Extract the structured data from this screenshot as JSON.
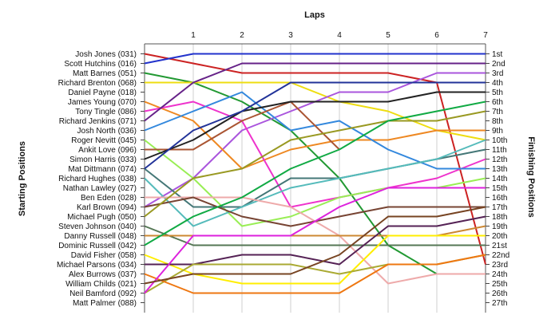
{
  "chart_data": {
    "type": "line",
    "title": "",
    "top_axis_label": "Laps",
    "left_axis_label": "Starting Positions",
    "right_axis_label": "Finishing Positions",
    "laps": [
      "1",
      "2",
      "3",
      "4",
      "5",
      "6",
      "7"
    ],
    "grid": true,
    "starting_labels": [
      "Josh Jones (031)",
      "Scott Hutchins (016)",
      "Matt Barnes (051)",
      "Richard Brenton (068)",
      "Daniel Payne (018)",
      "James Young (070)",
      "Tony Tingle (086)",
      "Richard Jenkins (071)",
      "Josh North (036)",
      "Roger Nevitt (045)",
      "Ankit Love (096)",
      "Simon Harris (033)",
      "Mat Dittmann (074)",
      "Richard Hughes (038)",
      "Nathan Lawley (027)",
      "Ben Eden (028)",
      "Karl Brown (094)",
      "Michael Pugh (050)",
      "Steven Johnson (040)",
      "Danny Russell (048)",
      "Dominic Russell (042)",
      "David Fisher (058)",
      "Michael Parsons (034)",
      "Alex Burrows (037)",
      "William Childs (021)",
      "Neil Bamford (092)",
      "Matt Palmer (088)"
    ],
    "finishing_labels": [
      "1st",
      "2nd",
      "3rd",
      "4th",
      "5th",
      "6th",
      "7th",
      "8th",
      "9th",
      "10th",
      "11th",
      "12th",
      "13th",
      "14th",
      "15th",
      "16th",
      "17th",
      "18th",
      "19th",
      "20th",
      "21st",
      "22nd",
      "23rd",
      "24th",
      "25th",
      "26th",
      "27th"
    ],
    "series": [
      {
        "color": "#cc2222",
        "positions": [
          1,
          2,
          3,
          3,
          3,
          3,
          4,
          23
        ]
      },
      {
        "color": "#2233cc",
        "positions": [
          2,
          1,
          1,
          1,
          1,
          1,
          1,
          1
        ]
      },
      {
        "color": "#229933",
        "positions": [
          3,
          4,
          6,
          9,
          14,
          21,
          24
        ]
      },
      {
        "color": "#eedd11",
        "positions": [
          4,
          4,
          4,
          4,
          6,
          7,
          9,
          10
        ]
      },
      {
        "color": "#aa55dd",
        "positions": [
          17,
          14,
          9,
          7,
          5,
          5,
          3,
          3
        ]
      },
      {
        "color": "#ee8822",
        "positions": [
          6,
          8,
          13,
          11,
          10,
          10,
          9,
          9
        ]
      },
      {
        "color": "#ee33cc",
        "positions": [
          7,
          6,
          8,
          17,
          16,
          15,
          14,
          12
        ]
      },
      {
        "color": "#662288",
        "positions": [
          8,
          4,
          2,
          2,
          2,
          2,
          2,
          2
        ]
      },
      {
        "color": "#3388dd",
        "positions": [
          9,
          7,
          5,
          9,
          8,
          11,
          13,
          13
        ]
      },
      {
        "color": "#99ee55",
        "positions": [
          10,
          14,
          19,
          18,
          16,
          15,
          15,
          14
        ]
      },
      {
        "color": "#aa5533",
        "positions": [
          11,
          11,
          8,
          6,
          11
        ]
      },
      {
        "color": "#222222",
        "positions": [
          12,
          10,
          7,
          6,
          6,
          6,
          5,
          5
        ]
      },
      {
        "color": "#447777",
        "positions": [
          13,
          17,
          17,
          14,
          14,
          13,
          12,
          11
        ]
      },
      {
        "color": "#55bbbb",
        "positions": [
          14,
          19,
          17,
          15,
          14,
          13,
          12,
          10
        ]
      },
      {
        "color": "#223399",
        "positions": [
          13,
          9,
          7,
          4,
          4,
          4,
          4,
          4
        ]
      },
      {
        "color": "#eeaaaa",
        "positions": [
          16,
          16,
          16,
          17,
          20,
          25,
          24,
          24
        ]
      },
      {
        "color": "#774433",
        "positions": [
          17,
          16,
          18,
          19,
          18,
          17,
          17,
          17
        ]
      },
      {
        "color": "#999922",
        "positions": [
          18,
          14,
          13,
          10,
          9,
          8,
          8,
          7
        ]
      },
      {
        "color": "#557755",
        "positions": [
          19,
          21,
          21,
          21,
          21,
          21,
          21,
          21
        ]
      },
      {
        "color": "#cc8833",
        "positions": [
          20,
          20,
          20,
          20,
          20,
          20,
          20,
          19
        ]
      },
      {
        "color": "#11aa44",
        "positions": [
          21,
          18,
          16,
          13,
          11,
          8,
          7,
          6
        ]
      },
      {
        "color": "#ffee00",
        "positions": [
          22,
          24,
          25,
          25,
          25,
          20,
          20,
          20
        ]
      },
      {
        "color": "#552255",
        "positions": [
          23,
          23,
          22,
          22,
          23,
          19,
          19,
          18
        ]
      },
      {
        "color": "#aaaa33",
        "positions": [
          26,
          23,
          23,
          23,
          24,
          23,
          23,
          22
        ]
      },
      {
        "color": "#ee7711",
        "positions": [
          24,
          26,
          26,
          26,
          26,
          23,
          23,
          22
        ]
      },
      {
        "color": "#dd22dd",
        "positions": [
          26,
          20,
          20,
          20,
          17,
          15,
          15,
          15
        ]
      },
      {
        "color": "#774422",
        "positions": [
          25,
          24,
          24,
          24,
          22,
          18,
          18,
          17
        ]
      }
    ]
  }
}
